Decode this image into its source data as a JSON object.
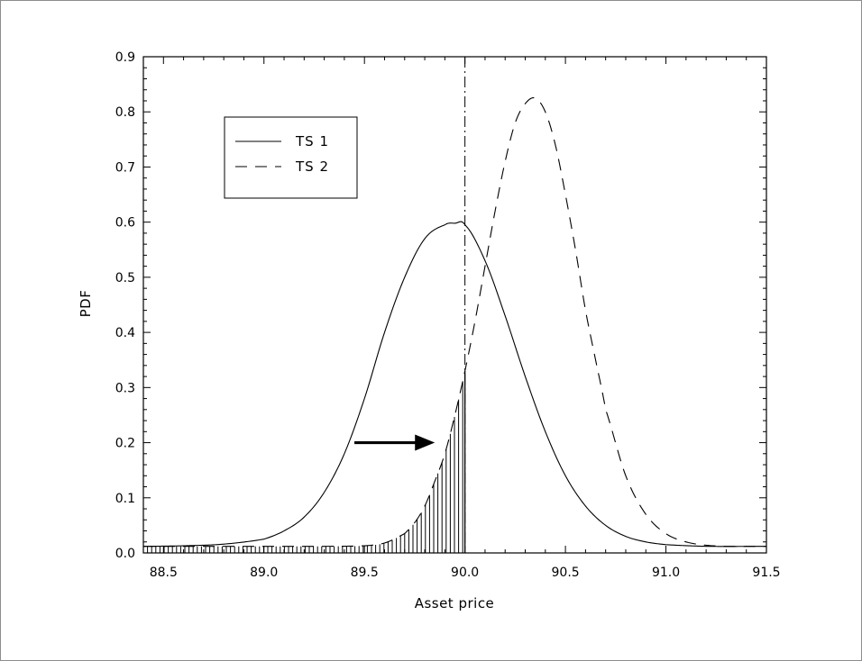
{
  "chart_data": {
    "type": "line",
    "title": "",
    "xlabel": "Asset price",
    "ylabel": "PDF",
    "xlim": [
      88.4,
      91.5
    ],
    "ylim": [
      0,
      0.9
    ],
    "x_ticks": [
      "88.5",
      "89.0",
      "89.5",
      "90.0",
      "90.5",
      "91.0",
      "91.5"
    ],
    "y_ticks": [
      "0.0",
      "0.1",
      "0.2",
      "0.3",
      "0.4",
      "0.5",
      "0.6",
      "0.7",
      "0.8",
      "0.9"
    ],
    "grid": false,
    "legend_position": "top-left",
    "series": [
      {
        "name": "TS 1",
        "line_style": "solid",
        "x": [
          88.4,
          88.6,
          88.8,
          89.0,
          89.1,
          89.2,
          89.3,
          89.4,
          89.5,
          89.6,
          89.7,
          89.8,
          89.9,
          89.95,
          90.0,
          90.1,
          90.2,
          90.3,
          90.4,
          90.5,
          90.6,
          90.7,
          90.8,
          90.9,
          91.0,
          91.2,
          91.5
        ],
        "y": [
          0.012,
          0.013,
          0.016,
          0.025,
          0.04,
          0.065,
          0.11,
          0.18,
          0.28,
          0.4,
          0.5,
          0.57,
          0.595,
          0.598,
          0.595,
          0.53,
          0.43,
          0.32,
          0.22,
          0.14,
          0.085,
          0.05,
          0.03,
          0.02,
          0.015,
          0.012,
          0.012
        ]
      },
      {
        "name": "TS 2",
        "line_style": "dashed",
        "x": [
          88.4,
          88.7,
          89.0,
          89.3,
          89.5,
          89.6,
          89.7,
          89.75,
          89.8,
          89.85,
          89.9,
          89.95,
          90.0,
          90.05,
          90.1,
          90.15,
          90.2,
          90.25,
          90.3,
          90.35,
          90.4,
          90.45,
          90.5,
          90.55,
          90.6,
          90.65,
          90.7,
          90.8,
          90.9,
          91.0,
          91.1,
          91.2,
          91.3,
          91.5
        ],
        "y": [
          0.012,
          0.012,
          0.012,
          0.012,
          0.013,
          0.018,
          0.035,
          0.055,
          0.085,
          0.13,
          0.18,
          0.25,
          0.33,
          0.42,
          0.52,
          0.62,
          0.71,
          0.78,
          0.815,
          0.825,
          0.8,
          0.74,
          0.65,
          0.55,
          0.44,
          0.35,
          0.26,
          0.14,
          0.07,
          0.035,
          0.02,
          0.014,
          0.012,
          0.012
        ]
      }
    ],
    "vertical_line": {
      "x": 90.0,
      "style": "dashdot"
    },
    "shaded_region": {
      "series": "TS 2",
      "x_from": 88.4,
      "x_to": 90.0,
      "pattern": "vertical-hatch"
    },
    "annotation": {
      "type": "arrow",
      "from": [
        89.45,
        0.2
      ],
      "to": [
        89.85,
        0.2
      ]
    }
  }
}
